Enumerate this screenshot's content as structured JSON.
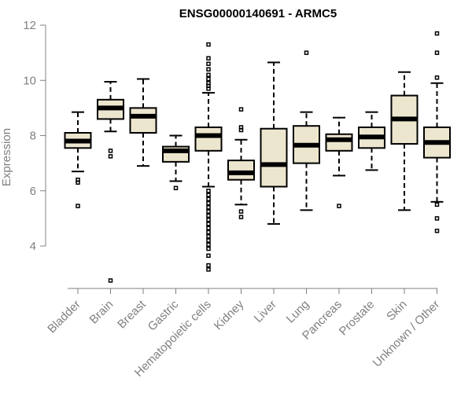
{
  "chart_data": {
    "type": "boxplot",
    "title": "ENSG00000140691 - ARMC5",
    "xlabel": "",
    "ylabel": "Expression",
    "ylim": [
      2.5,
      12
    ],
    "yticks": [
      4,
      6,
      8,
      10,
      12
    ],
    "categories": [
      "Bladder",
      "Brain",
      "Breast",
      "Gastric",
      "Hematopoietic cells",
      "Kidney",
      "Liver",
      "Lung",
      "Pancreas",
      "Prostate",
      "Skin",
      "Unknown / Other"
    ],
    "boxes": [
      {
        "name": "Bladder",
        "min": 6.7,
        "q1": 7.55,
        "median": 7.8,
        "q3": 8.1,
        "max": 8.85,
        "outliers": [
          6.4,
          6.3,
          5.45
        ]
      },
      {
        "name": "Brain",
        "min": 8.15,
        "q1": 8.6,
        "median": 9.0,
        "q3": 9.3,
        "max": 9.95,
        "outliers": [
          7.45,
          7.25,
          2.75
        ]
      },
      {
        "name": "Breast",
        "min": 6.9,
        "q1": 8.1,
        "median": 8.7,
        "q3": 9.0,
        "max": 10.05,
        "outliers": []
      },
      {
        "name": "Gastric",
        "min": 6.35,
        "q1": 7.05,
        "median": 7.45,
        "q3": 7.6,
        "max": 8.0,
        "outliers": [
          6.1
        ]
      },
      {
        "name": "Hematopoietic cells",
        "min": 6.15,
        "q1": 7.45,
        "median": 8.0,
        "q3": 8.3,
        "max": 9.55,
        "outliers": [
          11.3,
          10.8,
          10.6,
          10.4,
          10.2,
          10.05,
          9.9,
          9.8,
          9.7,
          6.0,
          5.85,
          5.7,
          5.55,
          5.4,
          5.25,
          5.1,
          4.95,
          4.8,
          4.65,
          4.5,
          4.35,
          4.2,
          4.05,
          3.9,
          3.65,
          3.3,
          3.15
        ]
      },
      {
        "name": "Kidney",
        "min": 5.5,
        "q1": 6.4,
        "median": 6.65,
        "q3": 7.1,
        "max": 7.85,
        "outliers": [
          8.95,
          8.3,
          8.2,
          5.25,
          5.05
        ]
      },
      {
        "name": "Liver",
        "min": 4.8,
        "q1": 6.15,
        "median": 6.95,
        "q3": 8.25,
        "max": 10.65,
        "outliers": []
      },
      {
        "name": "Lung",
        "min": 5.3,
        "q1": 7.0,
        "median": 7.65,
        "q3": 8.35,
        "max": 8.85,
        "outliers": [
          11.0
        ]
      },
      {
        "name": "Pancreas",
        "min": 6.55,
        "q1": 7.45,
        "median": 7.85,
        "q3": 8.05,
        "max": 8.65,
        "outliers": [
          5.45
        ]
      },
      {
        "name": "Prostate",
        "min": 6.75,
        "q1": 7.55,
        "median": 7.95,
        "q3": 8.3,
        "max": 8.85,
        "outliers": []
      },
      {
        "name": "Skin",
        "min": 5.3,
        "q1": 7.7,
        "median": 8.6,
        "q3": 9.45,
        "max": 10.3,
        "outliers": []
      },
      {
        "name": "Unknown / Other",
        "min": 5.6,
        "q1": 7.2,
        "median": 7.75,
        "q3": 8.3,
        "max": 9.9,
        "outliers": [
          11.7,
          11.0,
          10.1,
          5.5,
          5.0,
          4.55
        ]
      }
    ]
  }
}
